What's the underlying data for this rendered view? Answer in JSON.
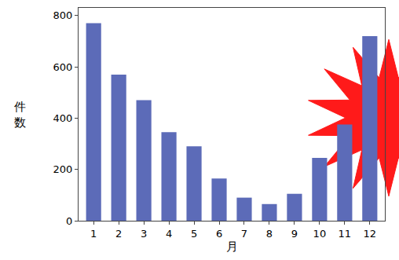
{
  "chart_data": {
    "type": "bar",
    "x_label": "月",
    "y_label": "件数",
    "categories": [
      "1",
      "2",
      "3",
      "4",
      "5",
      "6",
      "7",
      "8",
      "9",
      "10",
      "11",
      "12"
    ],
    "values": [
      770,
      570,
      470,
      345,
      290,
      165,
      90,
      65,
      105,
      245,
      375,
      720
    ],
    "color": "#5c6bb8",
    "ylim": [
      0,
      830
    ],
    "yticks": [
      0,
      200,
      400,
      600,
      800
    ],
    "grid": false
  }
}
